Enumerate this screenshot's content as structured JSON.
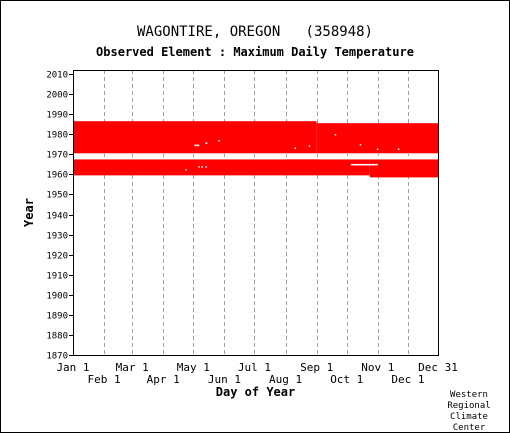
{
  "header": {
    "station": "WAGONTIRE, OREGON   (358948)",
    "element": "Observed Element : Maximum Daily Temperature"
  },
  "credit": [
    "Western",
    "Regional",
    "Climate",
    "Center"
  ],
  "colors": {
    "data": "#ff0000",
    "grid": "#a0a0a0",
    "axis": "#000000"
  },
  "chart_data": {
    "type": "heatmap",
    "title": "Observed Element : Maximum Daily Temperature",
    "xlabel": "Day of Year",
    "ylabel": "Year",
    "xlim": [
      1,
      365
    ],
    "ylim": [
      1870,
      2012
    ],
    "y_ticks": [
      1870,
      1880,
      1890,
      1900,
      1910,
      1920,
      1930,
      1940,
      1950,
      1960,
      1970,
      1980,
      1990,
      2000,
      2010
    ],
    "x_ticks_upper": [
      {
        "label": "Jan 1",
        "day": 1
      },
      {
        "label": "Mar 1",
        "day": 60
      },
      {
        "label": "May 1",
        "day": 121
      },
      {
        "label": "Jul 1",
        "day": 182
      },
      {
        "label": "Sep 1",
        "day": 244
      },
      {
        "label": "Nov 1",
        "day": 305
      },
      {
        "label": "Dec 31",
        "day": 365
      }
    ],
    "x_ticks_lower": [
      {
        "label": "Feb 1",
        "day": 32
      },
      {
        "label": "Apr 1",
        "day": 91
      },
      {
        "label": "Jun 1",
        "day": 152
      },
      {
        "label": "Aug 1",
        "day": 213
      },
      {
        "label": "Oct 1",
        "day": 274
      },
      {
        "label": "Dec 1",
        "day": 335
      }
    ],
    "grid_days": [
      32,
      60,
      91,
      121,
      152,
      182,
      213,
      244,
      274,
      305,
      335
    ],
    "record_periods": [
      {
        "year_start": 1970.5,
        "year_end": 1986.5,
        "day_start": 1,
        "day_end": 244
      },
      {
        "year_start": 1970.5,
        "year_end": 1985.5,
        "day_start": 244,
        "day_end": 365
      },
      {
        "year_start": 1959.5,
        "year_end": 1967.5,
        "day_start": 1,
        "day_end": 297
      },
      {
        "year_start": 1958.5,
        "year_end": 1967.5,
        "day_start": 297,
        "day_end": 365
      }
    ],
    "gaps": [
      {
        "day_start": 1,
        "day_end": 214,
        "year_start": 1967.5,
        "year_end": 1968.6
      },
      {
        "day_start": 214,
        "day_end": 247,
        "year_start": 1968.0,
        "year_end": 1968.6
      },
      {
        "day_start": 247,
        "day_end": 365,
        "year_start": 1967.5,
        "year_end": 1969.2
      },
      {
        "day_start": 278,
        "day_end": 305,
        "year_start": 1964.6,
        "year_end": 1965.2
      },
      {
        "day_start": 122,
        "day_end": 127,
        "year_start": 1974.3,
        "year_end": 1974.8
      },
      {
        "day_start": 133,
        "day_end": 135,
        "year_start": 1975.4,
        "year_end": 1975.9
      },
      {
        "day_start": 146,
        "day_end": 147,
        "year_start": 1976.6,
        "year_end": 1977.1
      },
      {
        "day_start": 126,
        "day_end": 127,
        "year_start": 1963.6,
        "year_end": 1964.1
      },
      {
        "day_start": 129,
        "day_end": 130,
        "year_start": 1963.6,
        "year_end": 1964.1
      },
      {
        "day_start": 133,
        "day_end": 134,
        "year_start": 1963.6,
        "year_end": 1964.1
      },
      {
        "day_start": 113,
        "day_end": 114,
        "year_start": 1962.1,
        "year_end": 1962.6
      },
      {
        "day_start": 222,
        "day_end": 223,
        "year_start": 1972.9,
        "year_end": 1973.4
      },
      {
        "day_start": 236,
        "day_end": 237,
        "year_start": 1973.9,
        "year_end": 1974.4
      },
      {
        "day_start": 262,
        "day_end": 263,
        "year_start": 1979.6,
        "year_end": 1980.1
      },
      {
        "day_start": 287,
        "day_end": 288,
        "year_start": 1974.6,
        "year_end": 1975.1
      },
      {
        "day_start": 304,
        "day_end": 305,
        "year_start": 1972.4,
        "year_end": 1972.9
      },
      {
        "day_start": 325,
        "day_end": 326,
        "year_start": 1972.4,
        "year_end": 1972.9
      }
    ]
  }
}
